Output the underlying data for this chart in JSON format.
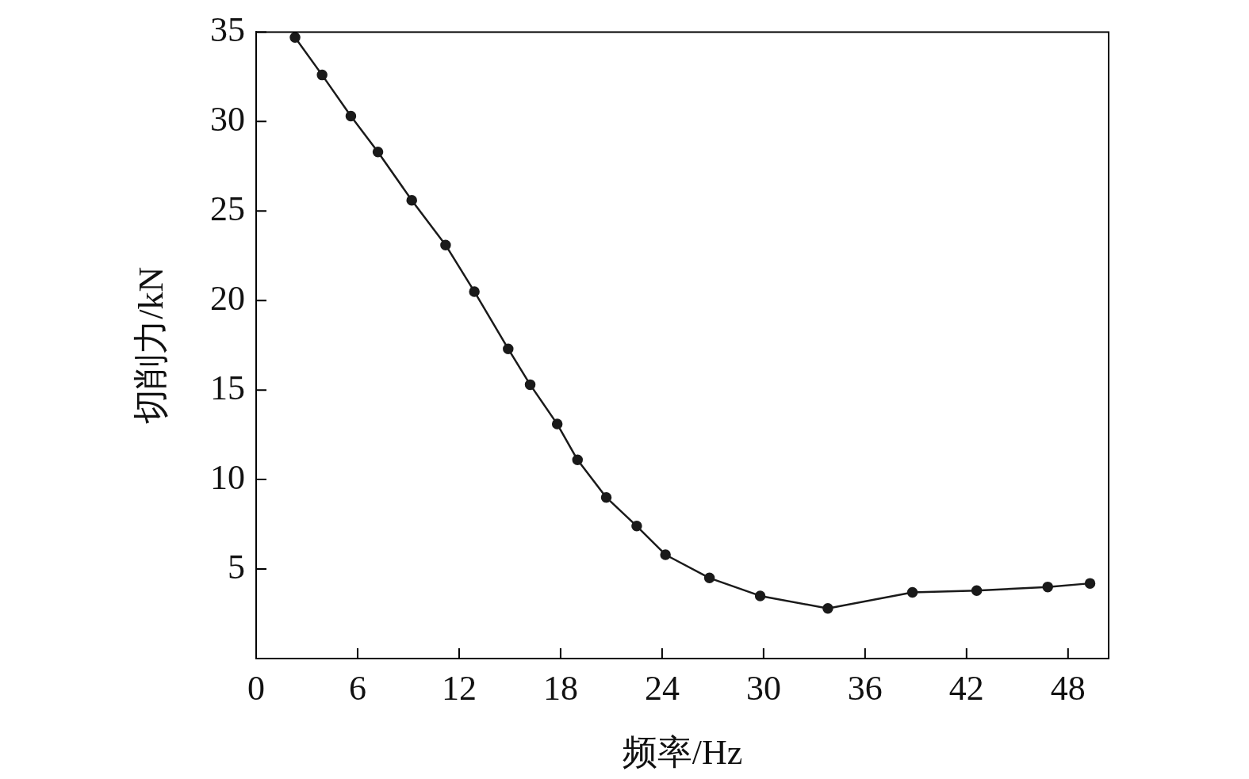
{
  "chart_data": {
    "type": "line",
    "xlabel": "频率/Hz",
    "ylabel": "切削力/kN",
    "x": [
      2.3,
      3.9,
      5.6,
      7.2,
      9.2,
      11.2,
      12.9,
      14.9,
      16.2,
      17.8,
      19.0,
      20.7,
      22.5,
      24.2,
      26.8,
      29.8,
      33.8,
      38.8,
      42.6,
      46.8,
      49.3
    ],
    "series": [
      {
        "color": "#1a1a1a",
        "values": [
          34.7,
          32.6,
          30.3,
          28.3,
          25.6,
          23.1,
          20.5,
          17.3,
          15.3,
          13.1,
          11.1,
          9.0,
          7.4,
          5.8,
          4.5,
          3.5,
          2.8,
          3.7,
          3.8,
          4.0,
          4.2
        ]
      }
    ],
    "xlim": [
      0,
      50.4
    ],
    "xticks": [
      0,
      6,
      12,
      18,
      24,
      30,
      36,
      42,
      48
    ],
    "ylim": [
      0,
      35
    ],
    "yticks": [
      5,
      10,
      15,
      20,
      25,
      30,
      35
    ],
    "marker": "circle",
    "line_style": "solid",
    "legend": false
  }
}
